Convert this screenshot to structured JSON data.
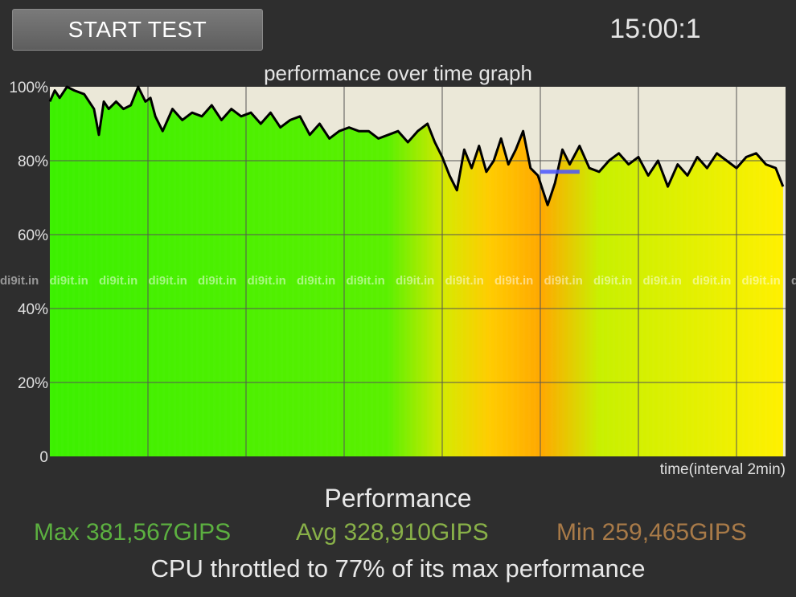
{
  "header": {
    "start_button_label": "START TEST",
    "timer": "15:00:1"
  },
  "graph": {
    "title": "performance over time graph",
    "x_label": "time(interval 2min)",
    "watermark": "di9it.in"
  },
  "colors": {
    "background": "#2e2e2e",
    "plot_background": "#ebe8d8",
    "high_perf": "#3cf000",
    "low_perf": "#ffb000",
    "line": "#000000",
    "marker": "#4a55ff",
    "max_text": "#5cb040",
    "avg_text": "#88b048",
    "min_text": "#a87a48"
  },
  "chart_data": {
    "type": "line",
    "ylim": [
      0,
      100
    ],
    "y_ticks": [
      "0",
      "20%",
      "40%",
      "60%",
      "80%",
      "100%"
    ],
    "x_range_minutes": [
      0,
      15
    ],
    "x_grid_interval_minutes": 2,
    "series": [
      {
        "x": [
          0,
          0.1,
          0.2,
          0.35,
          0.5,
          0.7,
          0.9,
          1.0,
          1.1,
          1.2,
          1.35,
          1.5,
          1.65,
          1.8,
          1.95,
          2.05,
          2.15,
          2.3,
          2.5,
          2.7,
          2.9,
          3.1,
          3.3,
          3.5,
          3.7,
          3.9,
          4.1,
          4.3,
          4.5,
          4.7,
          4.9,
          5.1,
          5.3,
          5.5,
          5.7,
          5.9,
          6.1,
          6.3,
          6.5,
          6.7,
          6.9,
          7.1,
          7.3,
          7.5,
          7.7,
          7.85,
          8.0,
          8.15,
          8.3,
          8.45,
          8.6,
          8.75,
          8.9,
          9.05,
          9.2,
          9.35,
          9.5,
          9.65,
          9.8,
          9.95,
          10.05,
          10.15,
          10.3,
          10.45,
          10.6,
          10.8,
          11.0,
          11.2,
          11.4,
          11.6,
          11.8,
          12.0,
          12.2,
          12.4,
          12.6,
          12.8,
          13.0,
          13.2,
          13.4,
          13.6,
          13.8,
          14.0,
          14.2,
          14.4,
          14.6,
          14.8,
          14.95
        ],
        "values": [
          96,
          99,
          97,
          100,
          99,
          98,
          94,
          87,
          96,
          94,
          96,
          94,
          95,
          100,
          96,
          97,
          92,
          88,
          94,
          91,
          93,
          92,
          95,
          91,
          94,
          92,
          93,
          90,
          93,
          89,
          91,
          92,
          87,
          90,
          86,
          88,
          89,
          88,
          88,
          86,
          87,
          88,
          85,
          88,
          90,
          85,
          81,
          76,
          72,
          83,
          78,
          84,
          77,
          80,
          86,
          79,
          83,
          88,
          78,
          76,
          72,
          68,
          74,
          83,
          79,
          84,
          78,
          77,
          80,
          82,
          79,
          81,
          76,
          80,
          73,
          79,
          76,
          81,
          78,
          82,
          80,
          78,
          81,
          82,
          79,
          78,
          73
        ]
      }
    ],
    "marker_level_percent": 77,
    "marker_x_range_minutes": [
      10.0,
      10.8
    ]
  },
  "stats": {
    "heading": "Performance",
    "max": "Max 381,567GIPS",
    "avg": "Avg 328,910GIPS",
    "min": "Min 259,465GIPS",
    "throttle": "CPU throttled to 77% of its max performance"
  }
}
